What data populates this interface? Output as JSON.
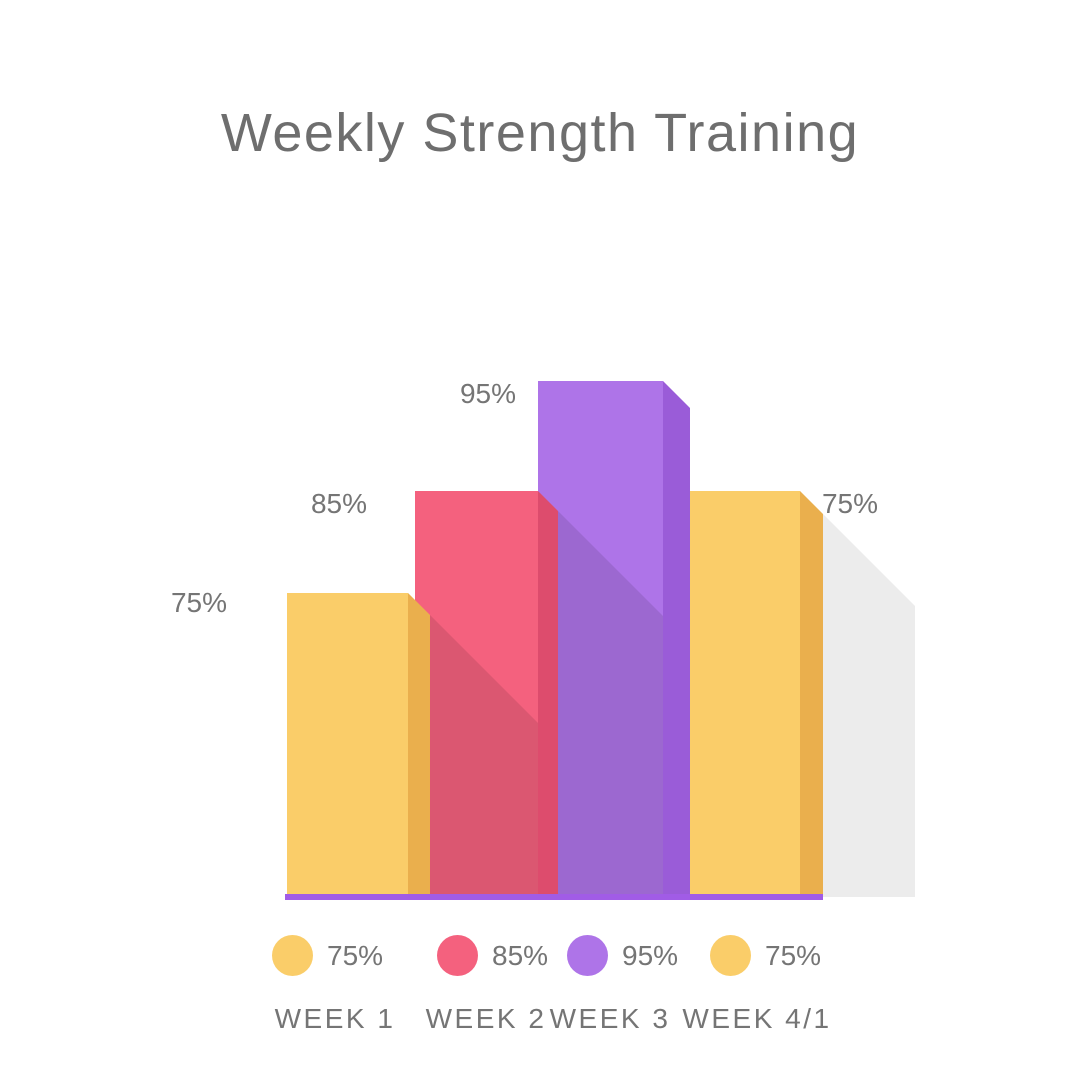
{
  "title": "Weekly Strength Training",
  "chart_data": {
    "type": "bar",
    "title": "Weekly Strength Training",
    "categories": [
      "WEEK 1",
      "WEEK 2",
      "WEEK 3",
      "WEEK 4/1"
    ],
    "values": [
      75,
      85,
      95,
      75
    ],
    "value_labels": [
      "75%",
      "85%",
      "95%",
      "75%"
    ],
    "unit": "%",
    "ylim": [
      0,
      100
    ],
    "grid": false,
    "legend_position": "bottom",
    "bar_colors": [
      "#FACD69",
      "#F4617E",
      "#AE74E8",
      "#FACD69"
    ],
    "bar_side_colors": [
      "#EAAF4D",
      "#DD4C6D",
      "#9A5CD8",
      "#EAAF4D"
    ],
    "shadow_color": "#ECECEC",
    "overlay_shadow": "rgba(0,0,0,0.10)",
    "baseline_color": "#A15CE6",
    "label_color": "#757575",
    "title_color": "#6E6E6E",
    "legend": [
      {
        "label": "75%",
        "color": "#FACD69"
      },
      {
        "label": "85%",
        "color": "#F4617E"
      },
      {
        "label": "95%",
        "color": "#AE74E8"
      },
      {
        "label": "75%",
        "color": "#FACD69"
      }
    ]
  }
}
